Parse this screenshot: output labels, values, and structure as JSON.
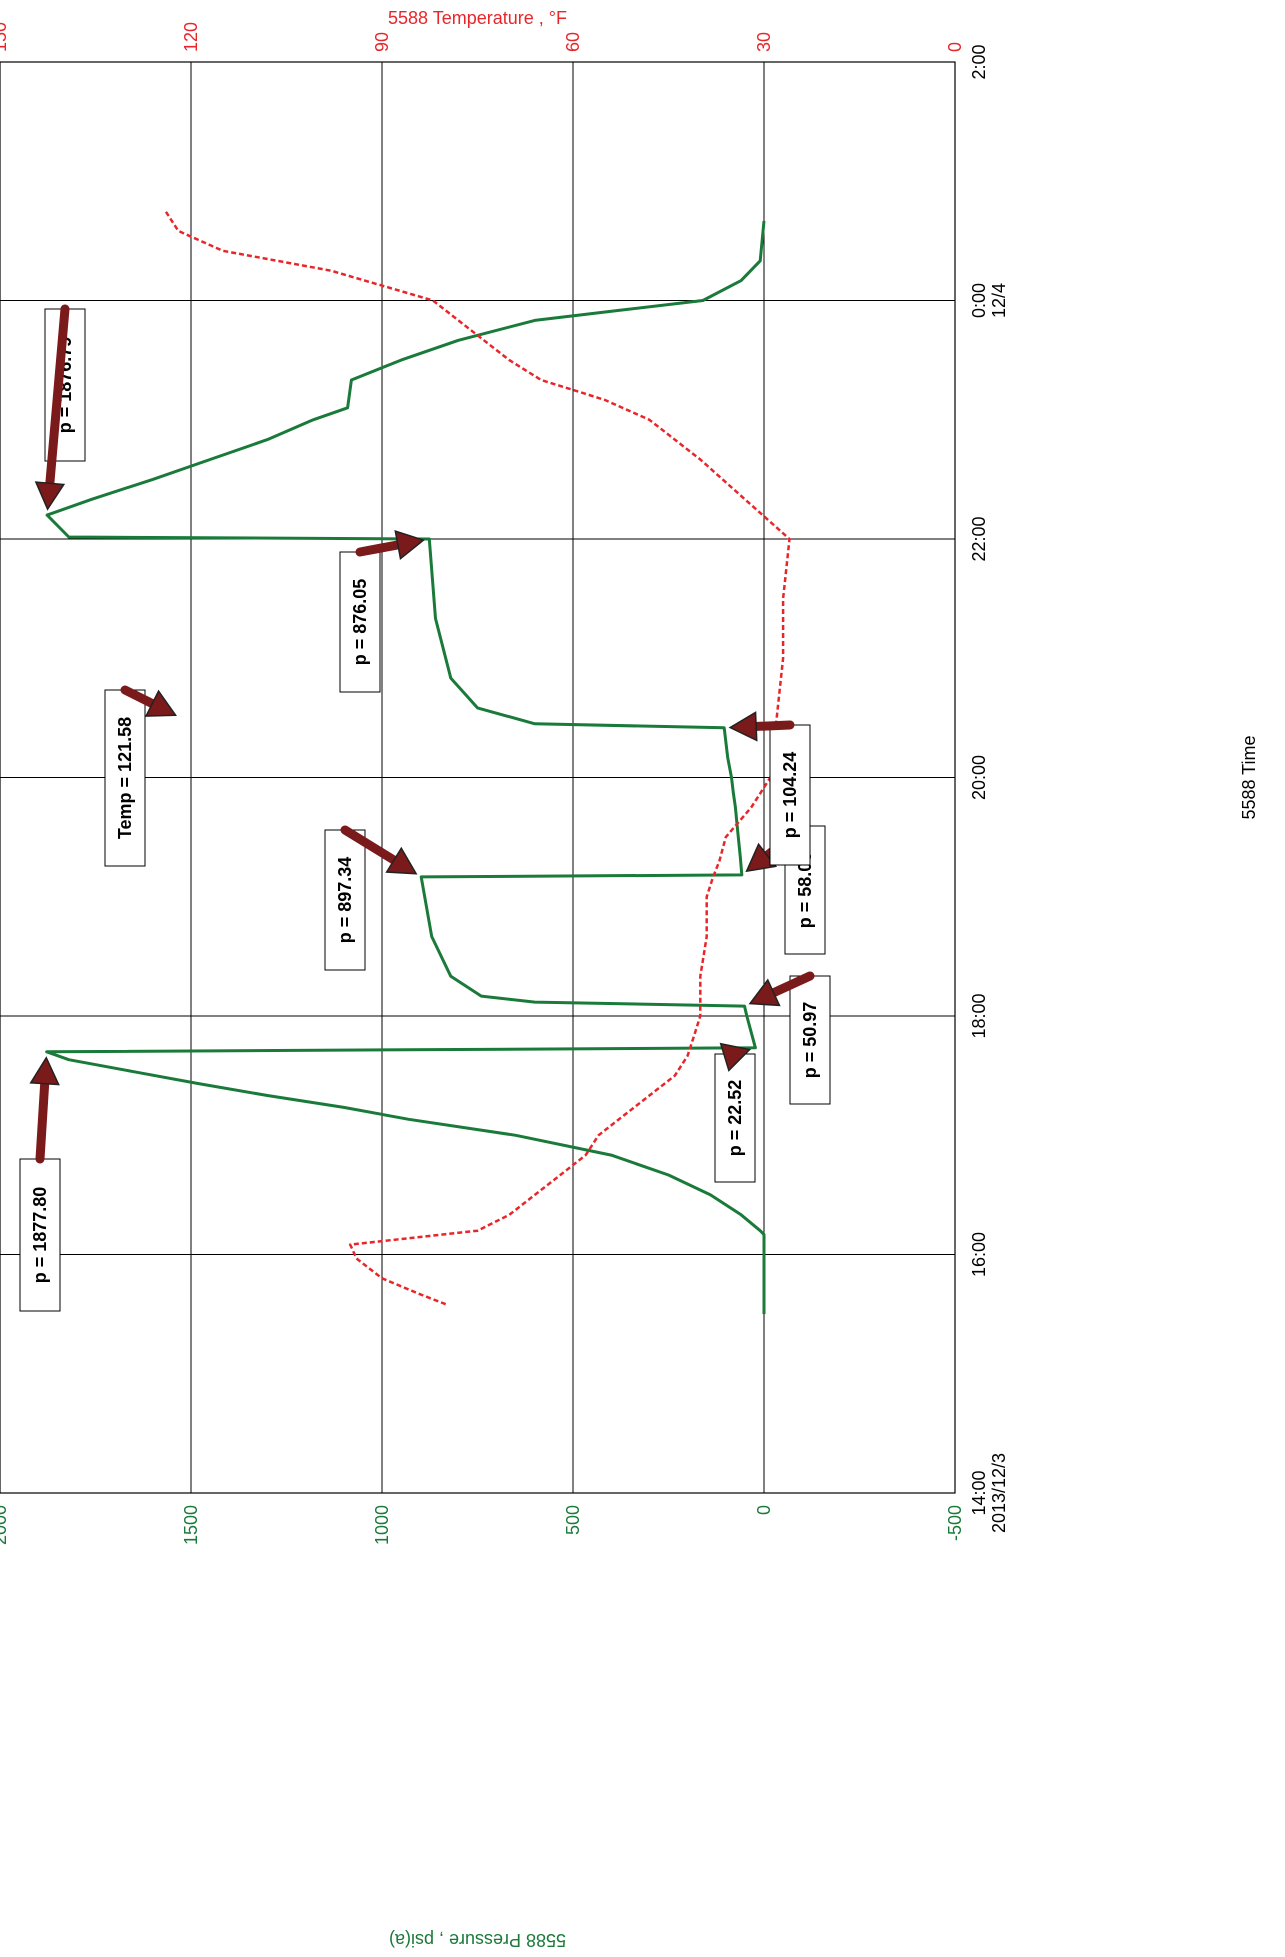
{
  "chart_data": {
    "type": "line",
    "title": "",
    "orientation": "rotated-90-clockwise",
    "time_axis": {
      "label": "5588 Time",
      "range": [
        "2013-12-03 14:00",
        "2013-12-04 02:00"
      ],
      "ticks": [
        {
          "time": "14:00",
          "label": "14:00",
          "sublabel": "2013/12/3"
        },
        {
          "time": "16:00",
          "label": "16:00",
          "sublabel": ""
        },
        {
          "time": "18:00",
          "label": "18:00",
          "sublabel": ""
        },
        {
          "time": "20:00",
          "label": "20:00",
          "sublabel": ""
        },
        {
          "time": "22:00",
          "label": "22:00",
          "sublabel": ""
        },
        {
          "time": "00:00",
          "label": "0:00",
          "sublabel": "12/4"
        },
        {
          "time": "02:00",
          "label": "2:00",
          "sublabel": ""
        }
      ]
    },
    "pressure_axis": {
      "label": "5588 Pressure , psi(a)",
      "range": [
        -500,
        2000
      ],
      "ticks": [
        -500,
        0,
        500,
        1000,
        1500,
        2000
      ],
      "color": "#1a7a3a"
    },
    "temperature_axis": {
      "label": "5588 Temperature , °F",
      "range": [
        0,
        150
      ],
      "ticks": [
        0,
        30,
        60,
        90,
        120,
        150
      ],
      "color": "#e8262a"
    },
    "grid": true,
    "series": [
      {
        "name": "5588 Pressure",
        "axis": "pressure",
        "color": "#1a7a3a",
        "points": [
          [
            "15:30",
            0
          ],
          [
            "16:10",
            0
          ],
          [
            "16:12",
            10
          ],
          [
            "16:20",
            60
          ],
          [
            "16:30",
            140
          ],
          [
            "16:40",
            250
          ],
          [
            "16:50",
            400
          ],
          [
            "17:00",
            650
          ],
          [
            "17:08",
            930
          ],
          [
            "17:14",
            1100
          ],
          [
            "17:20",
            1300
          ],
          [
            "17:26",
            1480
          ],
          [
            "17:32",
            1650
          ],
          [
            "17:38",
            1820
          ],
          [
            "17:42",
            1877.8
          ],
          [
            "17:44",
            22.52
          ],
          [
            "18:00",
            45
          ],
          [
            "18:05",
            50.97
          ],
          [
            "18:07",
            600
          ],
          [
            "18:10",
            740
          ],
          [
            "18:20",
            820
          ],
          [
            "18:40",
            870
          ],
          [
            "19:10",
            897.34
          ],
          [
            "19:11",
            58.03
          ],
          [
            "19:20",
            62
          ],
          [
            "19:35",
            70
          ],
          [
            "19:45",
            75
          ],
          [
            "19:52",
            80
          ],
          [
            "20:00",
            85
          ],
          [
            "20:10",
            95
          ],
          [
            "20:25",
            104.24
          ],
          [
            "20:27",
            600
          ],
          [
            "20:35",
            750
          ],
          [
            "20:50",
            820
          ],
          [
            "21:20",
            860
          ],
          [
            "22:00",
            876.05
          ],
          [
            "22:01",
            1820
          ],
          [
            "22:12",
            1876.79
          ],
          [
            "22:20",
            1760
          ],
          [
            "22:30",
            1600
          ],
          [
            "22:40",
            1450
          ],
          [
            "22:50",
            1300
          ],
          [
            "23:00",
            1180
          ],
          [
            "23:06",
            1090
          ],
          [
            "23:20",
            1080
          ],
          [
            "23:30",
            950
          ],
          [
            "23:40",
            800
          ],
          [
            "23:50",
            600
          ],
          [
            "23:55",
            380
          ],
          [
            "00:00",
            160
          ],
          [
            "00:10",
            60
          ],
          [
            "00:20",
            10
          ],
          [
            "00:40",
            0
          ]
        ]
      },
      {
        "name": "5588 Temperature",
        "axis": "temperature",
        "color": "#e8262a",
        "points": [
          [
            "15:35",
            80
          ],
          [
            "15:40",
            84
          ],
          [
            "15:48",
            90
          ],
          [
            "15:58",
            94
          ],
          [
            "16:05",
            95
          ],
          [
            "16:12",
            75
          ],
          [
            "16:20",
            70
          ],
          [
            "16:30",
            66
          ],
          [
            "16:40",
            62
          ],
          [
            "16:50",
            58
          ],
          [
            "17:00",
            56
          ],
          [
            "17:10",
            52
          ],
          [
            "17:20",
            48
          ],
          [
            "17:30",
            44
          ],
          [
            "17:40",
            42
          ],
          [
            "17:50",
            41
          ],
          [
            "18:00",
            40
          ],
          [
            "18:20",
            40
          ],
          [
            "18:40",
            39
          ],
          [
            "19:00",
            39
          ],
          [
            "19:10",
            38
          ],
          [
            "19:18",
            37
          ],
          [
            "19:30",
            36
          ],
          [
            "19:45",
            32
          ],
          [
            "20:00",
            29
          ],
          [
            "20:30",
            28
          ],
          [
            "21:00",
            27
          ],
          [
            "21:30",
            27
          ],
          [
            "22:00",
            26
          ],
          [
            "22:20",
            33
          ],
          [
            "22:40",
            40
          ],
          [
            "23:00",
            48
          ],
          [
            "23:10",
            55
          ],
          [
            "23:20",
            65
          ],
          [
            "23:30",
            70
          ],
          [
            "23:40",
            74
          ],
          [
            "23:50",
            78
          ],
          [
            "00:00",
            82
          ],
          [
            "00:15",
            98
          ],
          [
            "00:25",
            115
          ],
          [
            "00:35",
            122
          ],
          [
            "00:45",
            124
          ]
        ]
      }
    ],
    "annotations": [
      {
        "text": "p = 1877.80",
        "time": "17:42",
        "value": 1877.8,
        "axis": "pressure"
      },
      {
        "text": "p = 22.52",
        "time": "17:44",
        "value": 22.52,
        "axis": "pressure"
      },
      {
        "text": "p = 50.97",
        "time": "18:05",
        "value": 50.97,
        "axis": "pressure"
      },
      {
        "text": "p = 897.34",
        "time": "19:10",
        "value": 897.34,
        "axis": "pressure"
      },
      {
        "text": "p = 58.03",
        "time": "19:11",
        "value": 58.03,
        "axis": "pressure"
      },
      {
        "text": "Temp = 121.58",
        "time": "20:30",
        "value": 121.58,
        "axis": "temperature"
      },
      {
        "text": "p = 104.24",
        "time": "20:25",
        "value": 104.24,
        "axis": "pressure"
      },
      {
        "text": "p = 876.05",
        "time": "22:00",
        "value": 876.05,
        "axis": "pressure"
      },
      {
        "text": "p = 1876.79",
        "time": "22:12",
        "value": 1876.79,
        "axis": "pressure"
      }
    ]
  }
}
